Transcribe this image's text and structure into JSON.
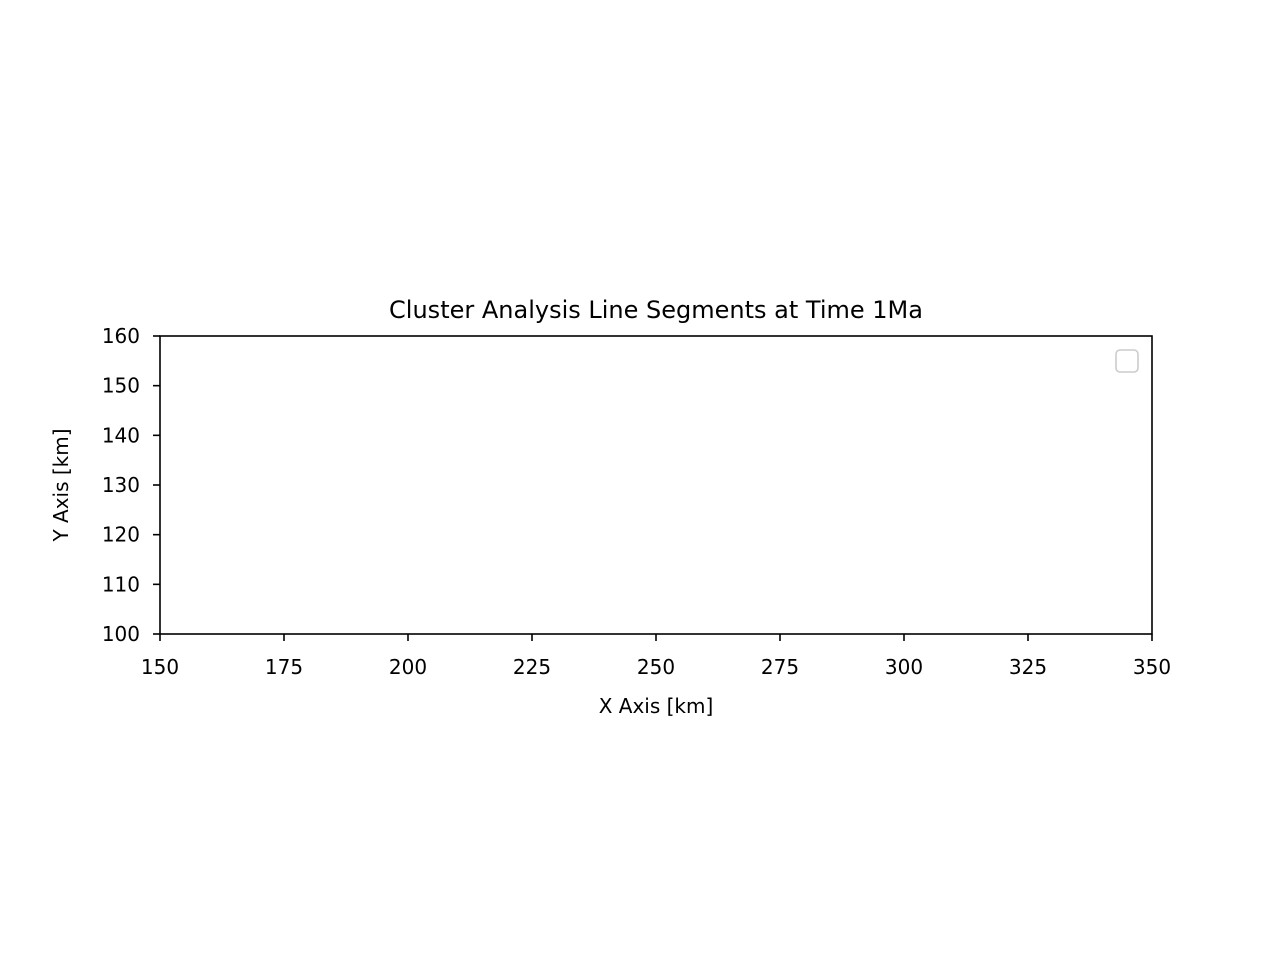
{
  "chart_data": {
    "type": "line",
    "title": "Cluster Analysis Line Segments at Time 1Ma",
    "xlabel": "X Axis [km]",
    "ylabel": "Y Axis [km]",
    "xlim": [
      150,
      350
    ],
    "ylim": [
      100,
      160
    ],
    "xticks": [
      150,
      175,
      200,
      225,
      250,
      275,
      300,
      325,
      350
    ],
    "yticks": [
      100,
      110,
      120,
      130,
      140,
      150,
      160
    ],
    "grid": false,
    "legend": {
      "placement": "top-right",
      "entries": []
    },
    "series": []
  },
  "colors": {
    "axis": "#000000",
    "legend_border": "#cccccc",
    "background": "#ffffff"
  }
}
